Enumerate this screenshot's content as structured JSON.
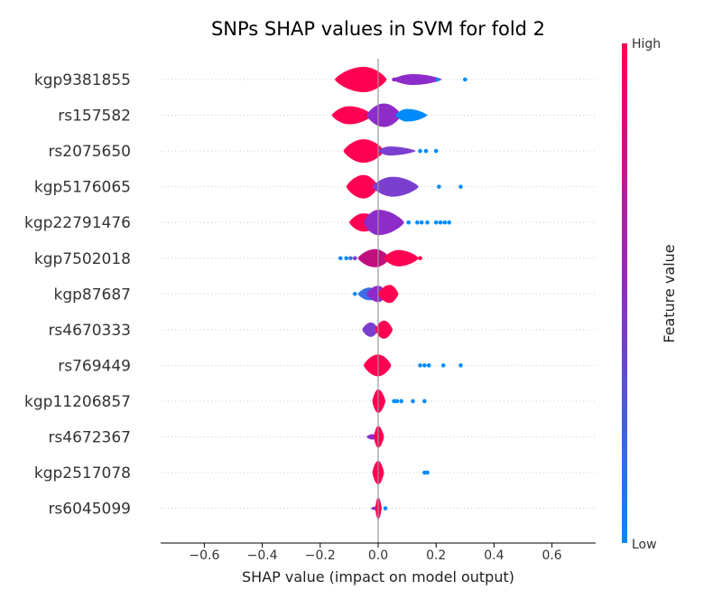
{
  "chart_data": {
    "type": "violin",
    "title": "SNPs SHAP values in SVM for fold 2",
    "xlabel": "SHAP value (impact on model output)",
    "xlim": [
      -0.75,
      0.75
    ],
    "xticks": [
      "−0.6",
      "−0.4",
      "−0.2",
      "0.0",
      "0.2",
      "0.4",
      "0.6"
    ],
    "xtick_values": [
      -0.6,
      -0.4,
      -0.2,
      0.0,
      0.2,
      0.4,
      0.6
    ],
    "colorbar": {
      "label": "Feature value",
      "high_label": "High",
      "low_label": "Low",
      "high_color": "#ff0052",
      "mid_color": "#8e2cc9",
      "low_color": "#008bfb"
    },
    "grid": "dotted horizontal guides per feature",
    "features": [
      {
        "name": "kgp9381855",
        "violins": [
          {
            "from": -0.15,
            "to": 0.03,
            "peak": -0.05,
            "max_half": 14,
            "color": "#ff0052"
          },
          {
            "from": 0.05,
            "to": 0.22,
            "peak": 0.12,
            "max_half": 6,
            "color": "#8e2cc9"
          }
        ],
        "points": [
          {
            "x": 0.055,
            "c": "#8e2cc9"
          },
          {
            "x": 0.205,
            "c": "#008bfb"
          },
          {
            "x": 0.3,
            "c": "#008bfb"
          }
        ]
      },
      {
        "name": "rs157582",
        "violins": [
          {
            "from": -0.16,
            "to": -0.02,
            "peak": -0.1,
            "max_half": 10,
            "color": "#ff0052"
          },
          {
            "from": -0.04,
            "to": 0.08,
            "peak": 0.02,
            "max_half": 13,
            "color": "#8e2cc9"
          },
          {
            "from": 0.06,
            "to": 0.17,
            "peak": 0.1,
            "max_half": 7,
            "color": "#008bfb"
          }
        ],
        "points": []
      },
      {
        "name": "rs2075650",
        "violins": [
          {
            "from": -0.12,
            "to": 0.02,
            "peak": -0.05,
            "max_half": 13,
            "color": "#ff0052"
          },
          {
            "from": 0.0,
            "to": 0.13,
            "peak": 0.04,
            "max_half": 5,
            "color": "#7b3fd0"
          }
        ],
        "points": [
          {
            "x": 0.145,
            "c": "#008bfb"
          },
          {
            "x": 0.165,
            "c": "#008bfb"
          },
          {
            "x": 0.2,
            "c": "#008bfb"
          }
        ]
      },
      {
        "name": "kgp5176065",
        "violins": [
          {
            "from": -0.11,
            "to": 0.0,
            "peak": -0.05,
            "max_half": 13,
            "color": "#ff0052"
          },
          {
            "from": -0.02,
            "to": 0.14,
            "peak": 0.05,
            "max_half": 11,
            "color": "#7b3fd0"
          }
        ],
        "points": [
          {
            "x": 0.21,
            "c": "#008bfb"
          },
          {
            "x": 0.285,
            "c": "#008bfb"
          }
        ]
      },
      {
        "name": "kgp22791476",
        "violins": [
          {
            "from": -0.1,
            "to": 0.02,
            "peak": -0.05,
            "max_half": 10,
            "color": "#ff0052"
          },
          {
            "from": -0.05,
            "to": 0.09,
            "peak": 0.0,
            "max_half": 14,
            "color": "#8e2cc9"
          }
        ],
        "points": [
          {
            "x": 0.105,
            "c": "#008bfb"
          },
          {
            "x": 0.135,
            "c": "#008bfb"
          },
          {
            "x": 0.15,
            "c": "#008bfb"
          },
          {
            "x": 0.17,
            "c": "#008bfb"
          },
          {
            "x": 0.2,
            "c": "#008bfb"
          },
          {
            "x": 0.215,
            "c": "#008bfb"
          },
          {
            "x": 0.23,
            "c": "#008bfb"
          },
          {
            "x": 0.245,
            "c": "#008bfb"
          }
        ]
      },
      {
        "name": "kgp7502018",
        "violins": [
          {
            "from": -0.07,
            "to": 0.04,
            "peak": -0.01,
            "max_half": 10,
            "color": "#c0107f"
          },
          {
            "from": 0.02,
            "to": 0.14,
            "peak": 0.07,
            "max_half": 9,
            "color": "#ff0052"
          }
        ],
        "points": [
          {
            "x": -0.13,
            "c": "#008bfb"
          },
          {
            "x": -0.11,
            "c": "#008bfb"
          },
          {
            "x": -0.095,
            "c": "#3a6fe8"
          },
          {
            "x": -0.08,
            "c": "#7b3fd0"
          },
          {
            "x": 0.145,
            "c": "#ff0052"
          }
        ]
      },
      {
        "name": "kgp87687",
        "violins": [
          {
            "from": -0.07,
            "to": 0.0,
            "peak": -0.03,
            "max_half": 7,
            "color": "#3a6fe8"
          },
          {
            "from": -0.04,
            "to": 0.03,
            "peak": 0.0,
            "max_half": 9,
            "color": "#8e2cc9"
          },
          {
            "from": 0.0,
            "to": 0.07,
            "peak": 0.04,
            "max_half": 10,
            "color": "#ff0052"
          }
        ],
        "points": [
          {
            "x": -0.08,
            "c": "#008bfb"
          }
        ]
      },
      {
        "name": "rs4670333",
        "violins": [
          {
            "from": -0.055,
            "to": 0.0,
            "peak": -0.025,
            "max_half": 8,
            "color": "#7b3fd0"
          },
          {
            "from": -0.01,
            "to": 0.05,
            "peak": 0.02,
            "max_half": 10,
            "color": "#ff0052"
          }
        ],
        "points": []
      },
      {
        "name": "rs769449",
        "violins": [
          {
            "from": -0.05,
            "to": 0.045,
            "peak": 0.0,
            "max_half": 12,
            "color": "#ff0052"
          }
        ],
        "points": [
          {
            "x": 0.145,
            "c": "#008bfb"
          },
          {
            "x": 0.16,
            "c": "#008bfb"
          },
          {
            "x": 0.175,
            "c": "#008bfb"
          },
          {
            "x": 0.225,
            "c": "#008bfb"
          },
          {
            "x": 0.285,
            "c": "#008bfb"
          }
        ]
      },
      {
        "name": "kgp11206857",
        "violins": [
          {
            "from": -0.02,
            "to": 0.025,
            "peak": 0.0,
            "max_half": 13,
            "color": "#ff0052"
          }
        ],
        "points": [
          {
            "x": 0.055,
            "c": "#008bfb"
          },
          {
            "x": 0.065,
            "c": "#008bfb"
          },
          {
            "x": 0.08,
            "c": "#008bfb"
          },
          {
            "x": 0.12,
            "c": "#008bfb"
          },
          {
            "x": 0.16,
            "c": "#008bfb"
          }
        ]
      },
      {
        "name": "rs4672367",
        "violins": [
          {
            "from": -0.04,
            "to": 0.0,
            "peak": -0.02,
            "max_half": 3,
            "color": "#8e2cc9"
          },
          {
            "from": -0.015,
            "to": 0.02,
            "peak": 0.0,
            "max_half": 12,
            "color": "#ff0052"
          }
        ],
        "points": []
      },
      {
        "name": "kgp2517078",
        "violins": [
          {
            "from": -0.02,
            "to": 0.02,
            "peak": 0.0,
            "max_half": 13,
            "color": "#ff0052"
          }
        ],
        "points": [
          {
            "x": 0.16,
            "c": "#008bfb"
          },
          {
            "x": 0.17,
            "c": "#008bfb"
          }
        ]
      },
      {
        "name": "rs6045099",
        "violins": [
          {
            "from": -0.025,
            "to": 0.0,
            "peak": -0.01,
            "max_half": 2,
            "color": "#8e2cc9"
          },
          {
            "from": -0.01,
            "to": 0.012,
            "peak": 0.0,
            "max_half": 12,
            "color": "#ff0052"
          }
        ],
        "points": [
          {
            "x": 0.025,
            "c": "#008bfb"
          }
        ]
      }
    ]
  }
}
